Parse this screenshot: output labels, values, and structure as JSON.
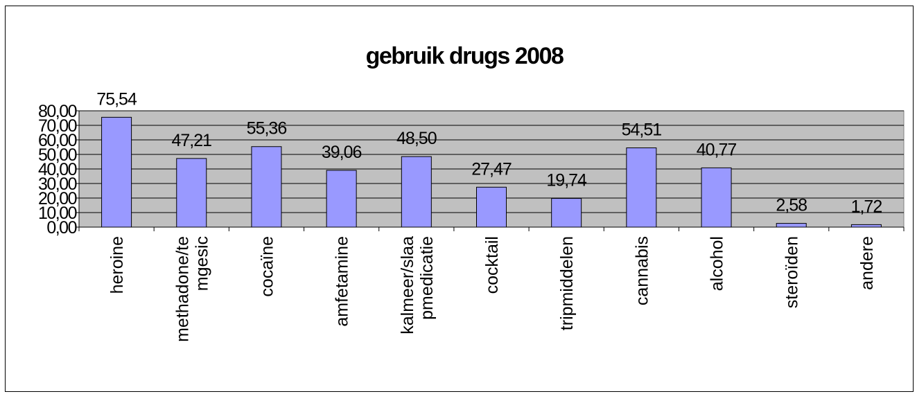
{
  "chart_data": {
    "type": "bar",
    "title": "gebruik drugs 2008",
    "xlabel": "",
    "ylabel": "",
    "categories": [
      [
        "heroine"
      ],
      [
        "methadone/te",
        "mgesic"
      ],
      [
        "cocaïne"
      ],
      [
        "amfetamine"
      ],
      [
        "kalmeer/slaa",
        "pmedicatie"
      ],
      [
        "cocktail"
      ],
      [
        "tripmiddelen"
      ],
      [
        "cannabis"
      ],
      [
        "alcohol"
      ],
      [
        "steroïden"
      ],
      [
        "andere"
      ]
    ],
    "values": [
      75.54,
      47.21,
      55.36,
      39.06,
      48.5,
      27.47,
      19.74,
      54.51,
      40.77,
      2.58,
      1.72
    ],
    "data_labels": [
      "75,54",
      "47,21",
      "55,36",
      "39,06",
      "48,50",
      "27,47",
      "19,74",
      "54,51",
      "40,77",
      "2,58",
      "1,72"
    ],
    "ylim": [
      0,
      80
    ],
    "y_ticks": [
      0,
      10,
      20,
      30,
      40,
      50,
      60,
      70,
      80
    ],
    "y_tick_labels": [
      "0,00",
      "10,00",
      "20,00",
      "30,00",
      "40,00",
      "50,00",
      "60,00",
      "70,00",
      "80,00"
    ],
    "grid": true,
    "legend": false,
    "colors": {
      "bar_fill": "#9999ff",
      "bar_stroke": "#000000",
      "plot_background": "#c0c0c0",
      "gridline": "#000000"
    }
  }
}
